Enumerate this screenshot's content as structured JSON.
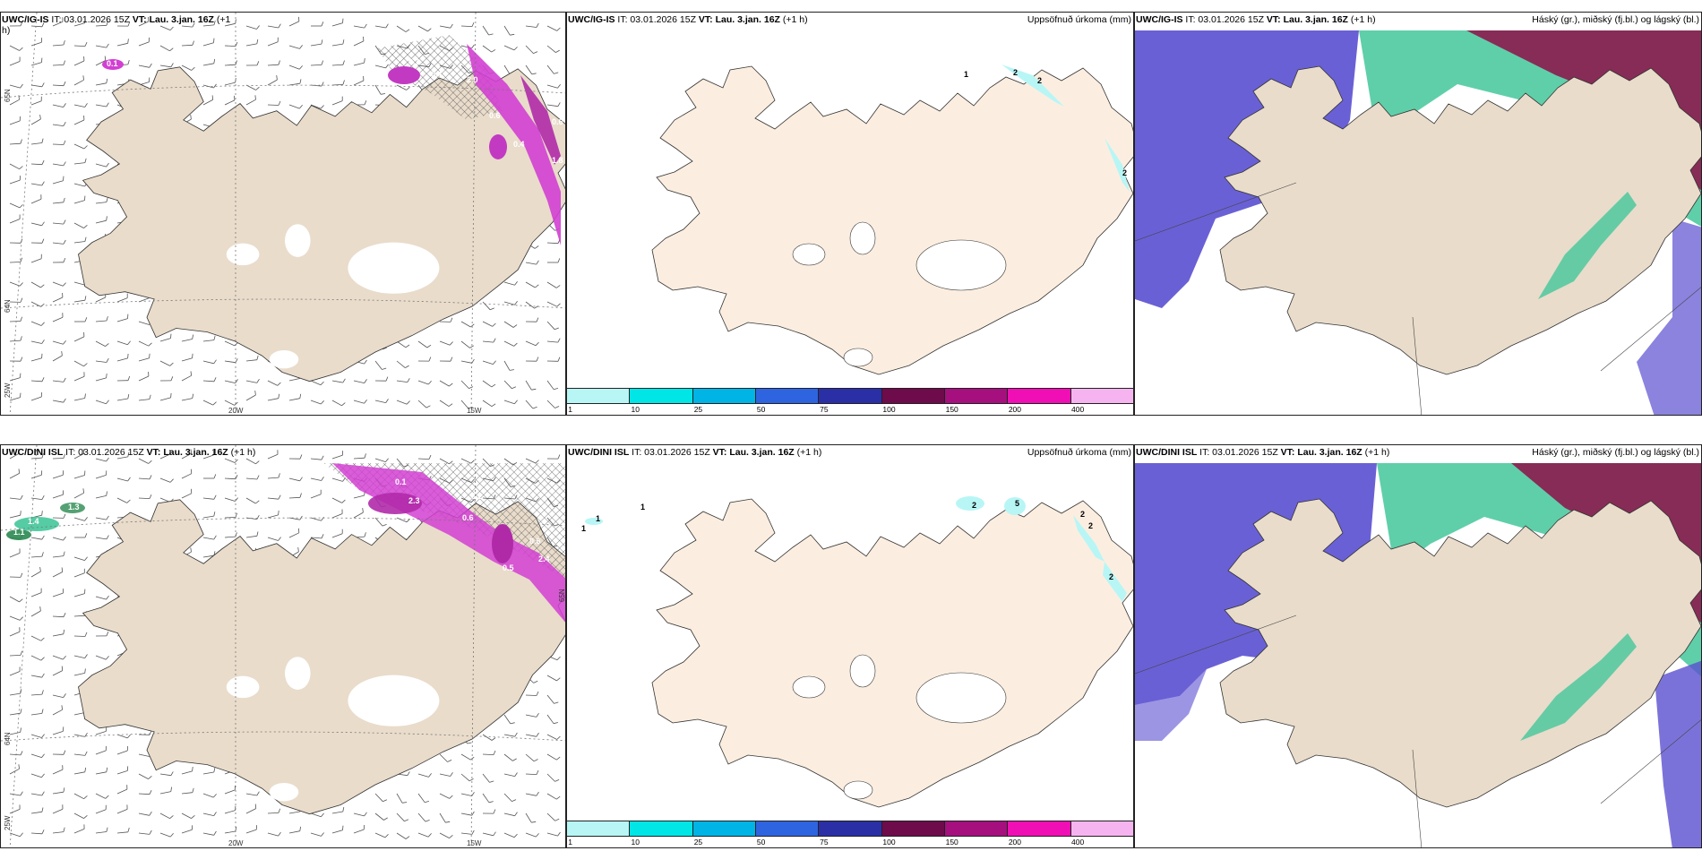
{
  "colors": {
    "land": "#e9dccb",
    "land_light": "#fbeee0",
    "glacier": "#ffffff",
    "wind_precip_magenta": "#d23fd2",
    "snow_green": "#43c79a",
    "cloud_low": "#5a4fd0",
    "cloud_high": "#8c1a4d",
    "coast": "#333333"
  },
  "icons": {
    "wind_barb": "wind-barb-icon",
    "hatch": "hatch-pattern-icon"
  },
  "rows": [
    {
      "model": "UWC/IG-IS",
      "init": "IT: 03.01.2026 15Z",
      "valid": "VT: Lau. 3.jan. 16Z",
      "lead": "(+1 h)",
      "wind_panel_title_extra": "(+1",
      "wind_panel_title_cont": "h)",
      "precip_title": "Uppsöfnuð úrkoma (mm)",
      "cloud_title": "Háský (gr.), miðský (fj.bl.) og lágský (bl.)",
      "precip_labels": [
        {
          "text": "1"
        },
        {
          "text": "2"
        },
        {
          "text": "2"
        },
        {
          "text": "2"
        }
      ],
      "wind_values": [
        "0.1",
        "0.1",
        "2.0",
        "0.6",
        "0.4",
        "1.8",
        "0.6",
        "0.4"
      ]
    },
    {
      "model": "UWC/DINI ISL",
      "init": "IT: 03.01.2026 15Z",
      "valid": "VT: Lau. 3.jan. 16Z",
      "lead": "(+1 h)",
      "wind_panel_title_extra": "",
      "wind_panel_title_cont": "",
      "precip_title": "Uppsöfnuð úrkoma (mm)",
      "cloud_title": "Háský (gr.), miðský (fj.bl.) og lágský (bl.)",
      "precip_labels": [
        {
          "text": "1"
        },
        {
          "text": "1"
        },
        {
          "text": "1"
        },
        {
          "text": "2"
        },
        {
          "text": "5"
        },
        {
          "text": "2"
        },
        {
          "text": "2"
        },
        {
          "text": "2"
        }
      ],
      "wind_values": [
        "1.4",
        "1.1",
        "1.3",
        "0.1",
        "2.3",
        "5.2",
        "0.6",
        "2.4",
        "0.5",
        "0.6"
      ]
    }
  ],
  "axis_labels": {
    "lat1": "65N",
    "lat2": "64N",
    "lon1": "20W",
    "lon2": "15W",
    "lon3": "25W"
  },
  "colorbar": {
    "colors": [
      "#b8f6f6",
      "#00e6e6",
      "#00b4e6",
      "#2e64e0",
      "#2b2fa6",
      "#6e0b4b",
      "#a5107e",
      "#f00fb4",
      "#f5b4f0"
    ],
    "labels": [
      "1",
      "10",
      "25",
      "50",
      "75",
      "100",
      "150",
      "200",
      "400"
    ]
  }
}
